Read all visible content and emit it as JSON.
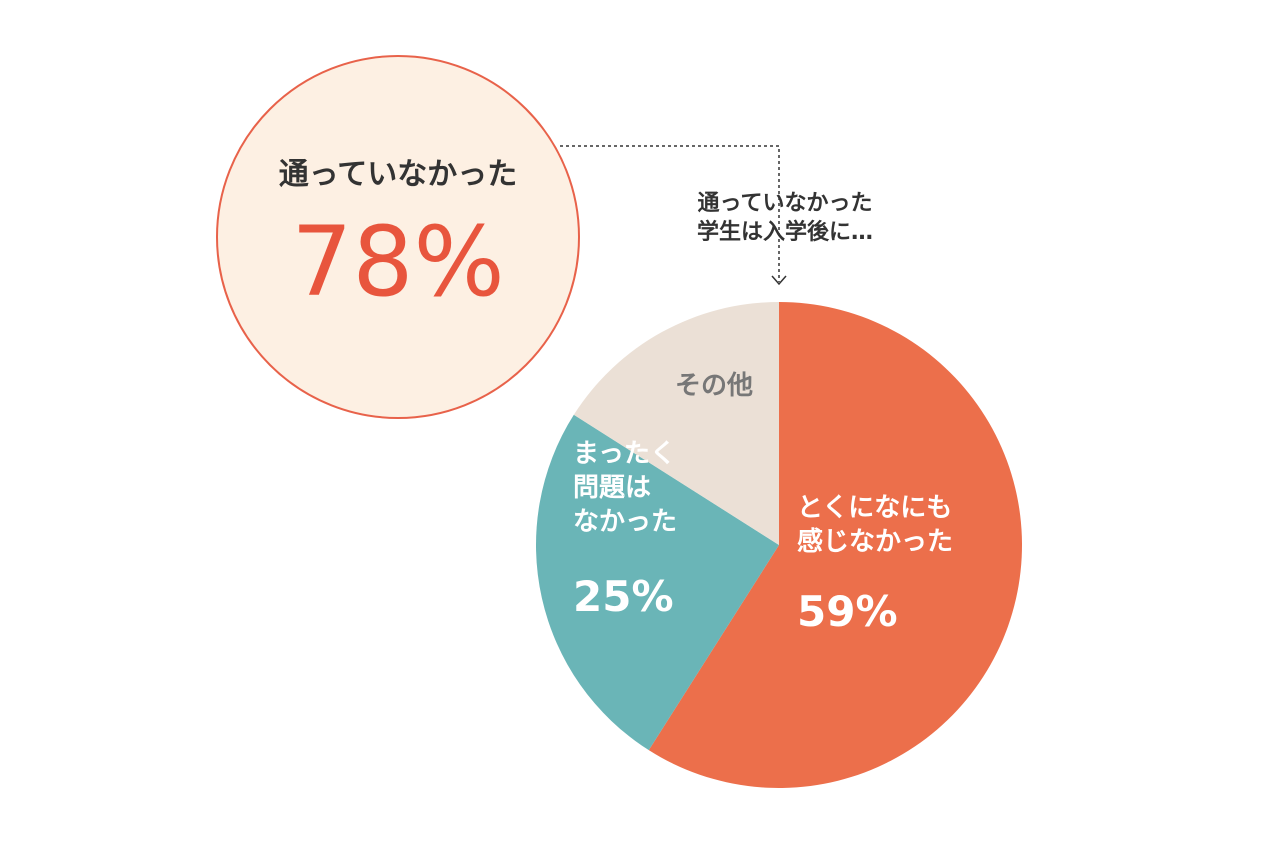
{
  "chart_data": {
    "type": "pie",
    "title": "通っていなかった\n学生は入学後に…",
    "categories": [
      "とくになにも\n感じなかった",
      "まったく\n問題は\nなかった",
      "その他"
    ],
    "values": [
      59,
      25,
      16
    ],
    "value_labels": [
      "59%",
      "25%",
      null
    ],
    "colors": [
      "#ec6f4b",
      "#6ab5b7",
      "#ebe0d6"
    ],
    "callout": {
      "label": "通っていなかった",
      "value": 78,
      "value_label": "78%",
      "color": "#e8553d"
    }
  }
}
